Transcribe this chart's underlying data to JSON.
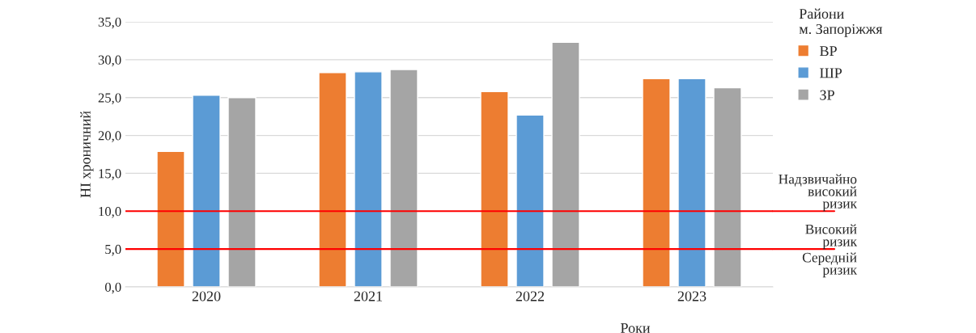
{
  "chart_data": {
    "type": "bar",
    "xlabel": "Роки",
    "ylabel": "НІ хроничний",
    "legend_title": "Райони\nм. Запоріжжя",
    "categories": [
      "2020",
      "2021",
      "2022",
      "2023"
    ],
    "series": [
      {
        "name": "ВР",
        "color": "#ed7d31",
        "values": [
          17.9,
          28.3,
          25.8,
          27.5
        ]
      },
      {
        "name": "ШР",
        "color": "#5b9bd5",
        "values": [
          25.3,
          28.4,
          22.7,
          27.5
        ]
      },
      {
        "name": "ЗР",
        "color": "#a5a5a5",
        "values": [
          25.0,
          28.7,
          32.3,
          26.3
        ]
      }
    ],
    "ylim": [
      0,
      35
    ],
    "yticks": [
      {
        "value": 0,
        "label": "0,0"
      },
      {
        "value": 5,
        "label": "5,0"
      },
      {
        "value": 10,
        "label": "10,0"
      },
      {
        "value": 15,
        "label": "15,0"
      },
      {
        "value": 20,
        "label": "20,0"
      },
      {
        "value": 25,
        "label": "25,0"
      },
      {
        "value": 30,
        "label": "30,0"
      },
      {
        "value": 35,
        "label": "35,0"
      }
    ],
    "ref_lines": [
      {
        "axis": "y",
        "value": 10,
        "label": "Надзвичайно\nвисокий\nризик",
        "color": "#ff0000"
      },
      {
        "axis": "y",
        "value": 5,
        "label": "Високий\nризик",
        "color": "#ff0000"
      }
    ],
    "annotations": [
      "Середній\nризик"
    ],
    "grid": "y",
    "legend": "top right"
  }
}
